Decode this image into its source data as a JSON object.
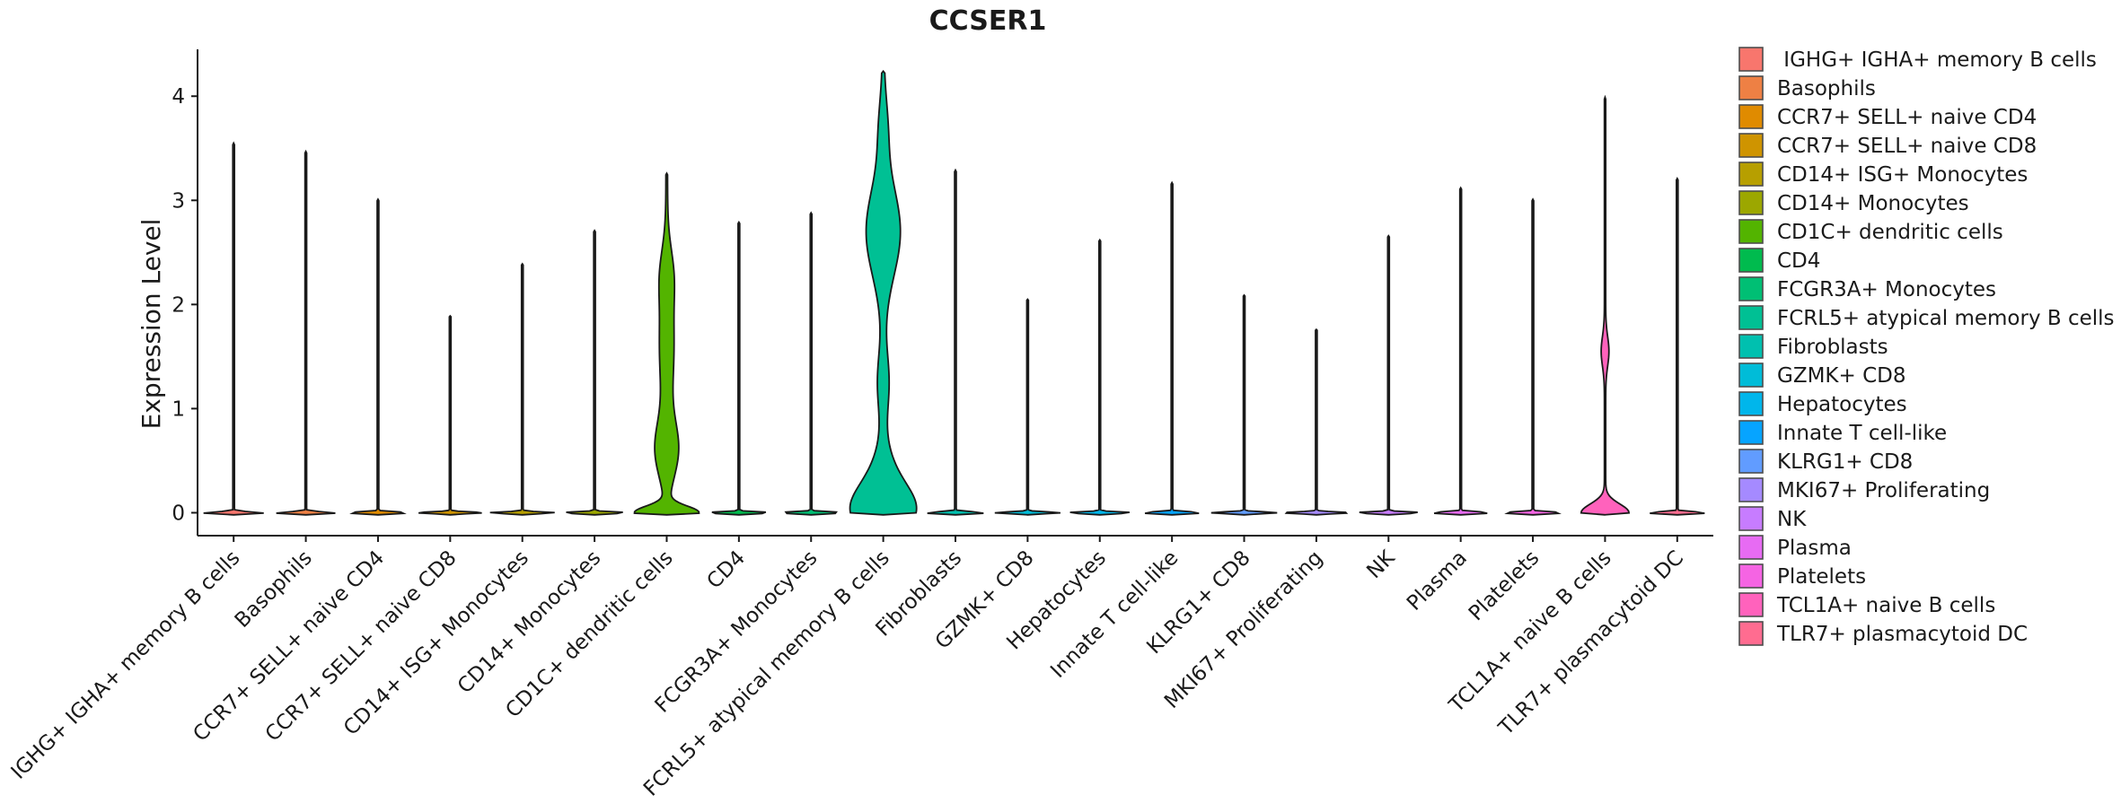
{
  "chart_data": {
    "type": "violin",
    "title": "CCSER1",
    "xlabel": "",
    "ylabel": "Expression Level",
    "ylim": [
      -0.22,
      4.45
    ],
    "yticks": [
      0,
      1,
      2,
      3,
      4
    ],
    "grid": false,
    "legend_position": "right",
    "groups": [
      {
        "name": " IGHG+ IGHA+ memory B cells",
        "color": "#F8766D",
        "max": 3.55,
        "profile": "spike"
      },
      {
        "name": "Basophils",
        "color": "#EE8044",
        "max": 3.47,
        "profile": "spike"
      },
      {
        "name": "CCR7+ SELL+ naive CD4",
        "color": "#E08B00",
        "max": 3.01,
        "profile": "spike"
      },
      {
        "name": "CCR7+ SELL+ naive CD8",
        "color": "#CF9400",
        "max": 1.89,
        "profile": "spike"
      },
      {
        "name": "CD14+ ISG+ Monocytes",
        "color": "#B79F00",
        "max": 2.39,
        "profile": "spike"
      },
      {
        "name": "CD14+ Monocytes",
        "color": "#9CA700",
        "max": 2.71,
        "profile": "spike"
      },
      {
        "name": "CD1C+ dendritic cells",
        "color": "#53B400",
        "max": 3.26,
        "profile": "cd1c"
      },
      {
        "name": "CD4",
        "color": "#00BB4E",
        "max": 2.79,
        "profile": "spike"
      },
      {
        "name": "FCGR3A+ Monocytes",
        "color": "#00BF74",
        "max": 2.88,
        "profile": "spike"
      },
      {
        "name": "FCRL5+ atypical memory B cells",
        "color": "#00C094",
        "max": 4.24,
        "profile": "fcrl5"
      },
      {
        "name": "Fibroblasts",
        "color": "#00C0AF",
        "max": 3.29,
        "profile": "spike"
      },
      {
        "name": "GZMK+ CD8",
        "color": "#00BCD8",
        "max": 2.05,
        "profile": "spike"
      },
      {
        "name": "Hepatocytes",
        "color": "#00B6EB",
        "max": 2.62,
        "profile": "spike"
      },
      {
        "name": "Innate T cell-like",
        "color": "#06A4FF",
        "max": 3.17,
        "profile": "spike"
      },
      {
        "name": "KLRG1+ CD8",
        "color": "#619CFF",
        "max": 2.09,
        "profile": "spike"
      },
      {
        "name": "MKI67+ Proliferating",
        "color": "#A58AFF",
        "max": 1.76,
        "profile": "spike"
      },
      {
        "name": "NK",
        "color": "#C77CFF",
        "max": 2.66,
        "profile": "spike"
      },
      {
        "name": "Plasma",
        "color": "#E76BF3",
        "max": 3.12,
        "profile": "spike"
      },
      {
        "name": "Platelets",
        "color": "#F564E3",
        "max": 3.01,
        "profile": "spike"
      },
      {
        "name": "TCL1A+ naive B cells",
        "color": "#FF62BC",
        "max": 3.99,
        "profile": "tcl1a"
      },
      {
        "name": "TLR7+ plasmacytoid DC",
        "color": "#FF6C90",
        "max": 3.21,
        "profile": "spike"
      }
    ]
  }
}
